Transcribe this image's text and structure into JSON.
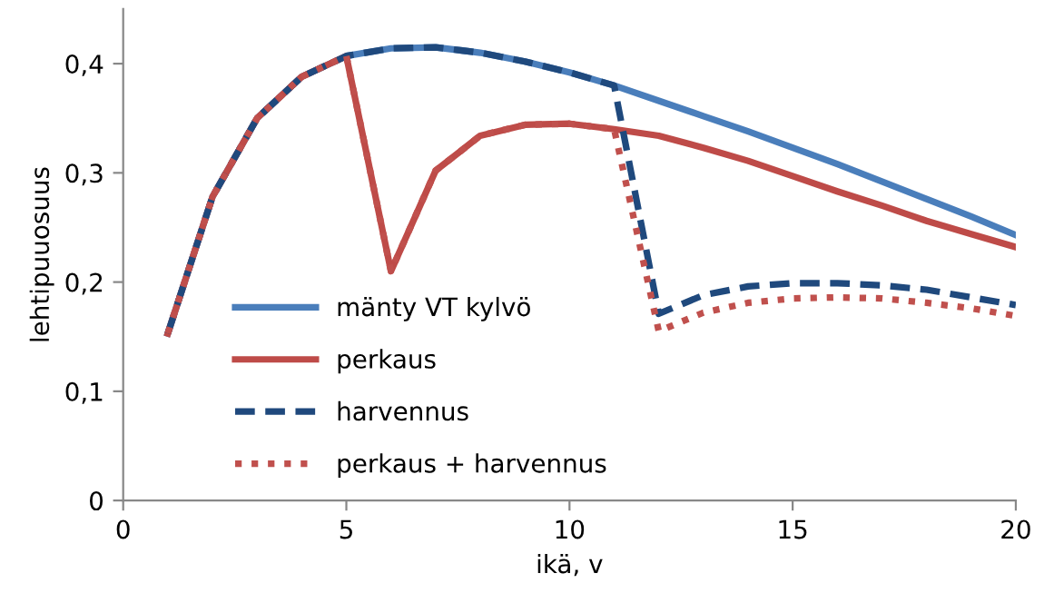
{
  "chart_data": {
    "type": "line",
    "xlabel": "ikä, v",
    "ylabel": "lehtipuuosuus",
    "x": [
      1,
      2,
      3,
      4,
      5,
      6,
      7,
      8,
      9,
      10,
      11,
      12,
      13,
      14,
      15,
      16,
      17,
      18,
      19,
      20
    ],
    "xlim": [
      0,
      20
    ],
    "xticks": [
      0,
      5,
      10,
      15,
      20
    ],
    "ylim": [
      0,
      0.45
    ],
    "yticks": [
      {
        "value": 0,
        "label": "0"
      },
      {
        "value": 0.1,
        "label": "0,1"
      },
      {
        "value": 0.2,
        "label": "0,2"
      },
      {
        "value": 0.3,
        "label": "0,3"
      },
      {
        "value": 0.4,
        "label": "0,4"
      }
    ],
    "grid": false,
    "legend": "lower left",
    "marker": "none",
    "series": [
      {
        "name": "mänty VT kylvö",
        "color": "#4a7ebb",
        "line_style": "solid",
        "values": [
          0.153,
          0.278,
          0.35,
          0.388,
          0.407,
          0.414,
          0.415,
          0.41,
          0.402,
          0.392,
          0.38,
          0.366,
          0.352,
          0.338,
          0.323,
          0.308,
          0.292,
          0.276,
          0.26,
          0.243
        ]
      },
      {
        "name": "perkaus",
        "color": "#be4b48",
        "line_style": "solid",
        "values": [
          0.153,
          0.278,
          0.35,
          0.388,
          0.407,
          0.21,
          0.302,
          0.334,
          0.344,
          0.345,
          0.34,
          0.334,
          0.323,
          0.311,
          0.297,
          0.283,
          0.27,
          0.256,
          0.244,
          0.232
        ]
      },
      {
        "name": "harvennus",
        "color": "#1f497d",
        "line_style": "dashed",
        "values": [
          0.153,
          0.278,
          0.35,
          0.388,
          0.407,
          0.414,
          0.415,
          0.41,
          0.402,
          0.392,
          0.38,
          0.171,
          0.188,
          0.196,
          0.199,
          0.199,
          0.197,
          0.193,
          0.186,
          0.179
        ]
      },
      {
        "name": "perkaus + harvennus",
        "color": "#c0504d",
        "line_style": "dotted",
        "values": [
          0.153,
          0.278,
          0.35,
          0.388,
          0.407,
          0.21,
          0.302,
          0.334,
          0.344,
          0.345,
          0.34,
          0.155,
          0.172,
          0.181,
          0.185,
          0.186,
          0.185,
          0.181,
          0.176,
          0.169
        ]
      }
    ]
  }
}
